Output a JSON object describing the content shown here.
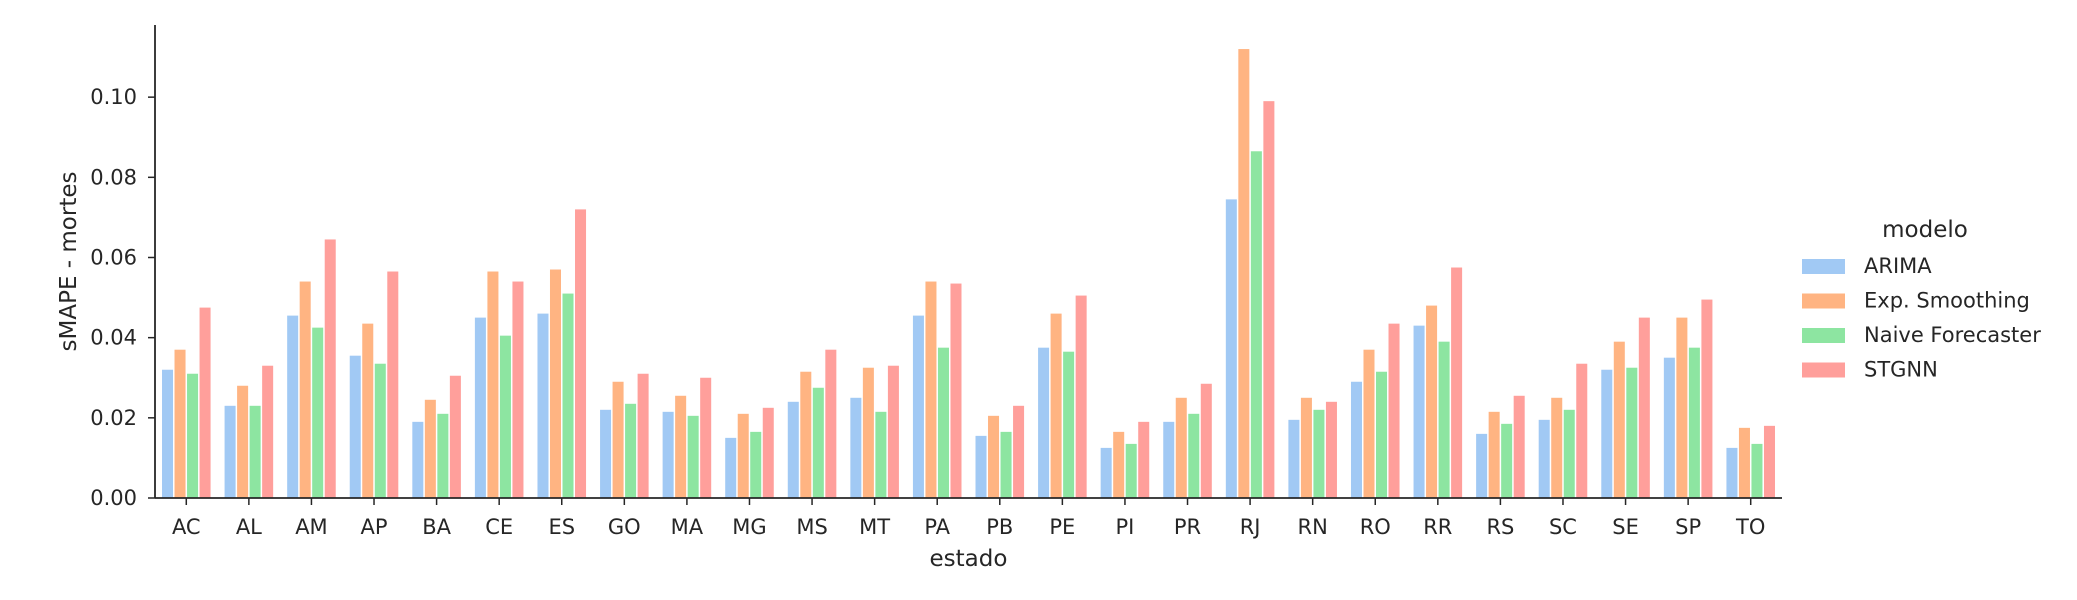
{
  "chart_data": {
    "type": "bar",
    "xlabel": "estado",
    "ylabel": "sMAPE - mortes",
    "ylim": [
      0,
      0.118
    ],
    "yticks": [
      "0.00",
      "0.02",
      "0.04",
      "0.06",
      "0.08",
      "0.10"
    ],
    "categories": [
      "AC",
      "AL",
      "AM",
      "AP",
      "BA",
      "CE",
      "ES",
      "GO",
      "MA",
      "MG",
      "MS",
      "MT",
      "PA",
      "PB",
      "PE",
      "PI",
      "PR",
      "RJ",
      "RN",
      "RO",
      "RR",
      "RS",
      "SC",
      "SE",
      "SP",
      "TO"
    ],
    "legend": {
      "title": "modelo",
      "position": "right"
    },
    "grid": false,
    "series": [
      {
        "name": "ARIMA",
        "color": "#a1c9f4",
        "values": [
          0.032,
          0.023,
          0.0455,
          0.0355,
          0.019,
          0.045,
          0.046,
          0.022,
          0.0215,
          0.015,
          0.024,
          0.025,
          0.0455,
          0.0155,
          0.0375,
          0.0125,
          0.019,
          0.0745,
          0.0195,
          0.029,
          0.043,
          0.016,
          0.0195,
          0.032,
          0.035,
          0.0125
        ]
      },
      {
        "name": "Exp. Smoothing",
        "color": "#ffb482",
        "values": [
          0.037,
          0.028,
          0.054,
          0.0435,
          0.0245,
          0.0565,
          0.057,
          0.029,
          0.0255,
          0.021,
          0.0315,
          0.0325,
          0.054,
          0.0205,
          0.046,
          0.0165,
          0.025,
          0.112,
          0.025,
          0.037,
          0.048,
          0.0215,
          0.025,
          0.039,
          0.045,
          0.0175
        ]
      },
      {
        "name": "Naive Forecaster",
        "color": "#8de5a1",
        "values": [
          0.031,
          0.023,
          0.0425,
          0.0335,
          0.021,
          0.0405,
          0.051,
          0.0235,
          0.0205,
          0.0165,
          0.0275,
          0.0215,
          0.0375,
          0.0165,
          0.0365,
          0.0135,
          0.021,
          0.0865,
          0.022,
          0.0315,
          0.039,
          0.0185,
          0.022,
          0.0325,
          0.0375,
          0.0135
        ]
      },
      {
        "name": "STGNN",
        "color": "#ff9f9b",
        "values": [
          0.0475,
          0.033,
          0.0645,
          0.0565,
          0.0305,
          0.054,
          0.072,
          0.031,
          0.03,
          0.0225,
          0.037,
          0.033,
          0.0535,
          0.023,
          0.0505,
          0.019,
          0.0285,
          0.099,
          0.024,
          0.0435,
          0.0575,
          0.0255,
          0.0335,
          0.045,
          0.0495,
          0.018
        ]
      }
    ]
  }
}
